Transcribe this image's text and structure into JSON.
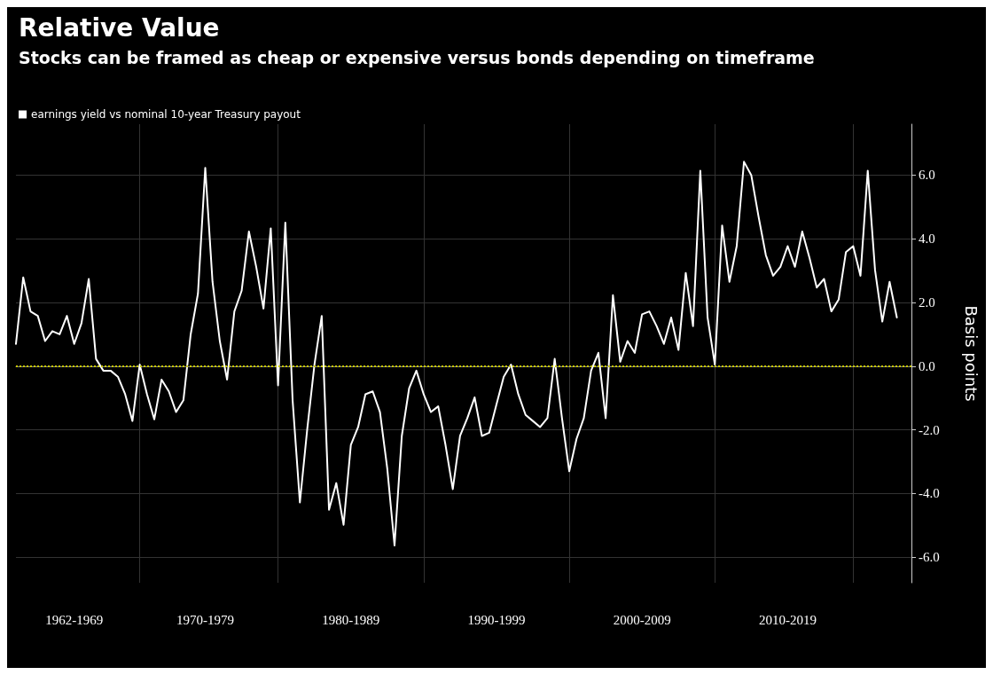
{
  "chart_data": {
    "type": "line",
    "title": "Relative Value",
    "subtitle": "Stocks can be framed as cheap or expensive versus bonds depending on timeframe",
    "ylabel": "Basis points",
    "categories": [
      null,
      null,
      null,
      null,
      null,
      null,
      null,
      null,
      "1962-1969",
      null,
      null,
      null,
      null,
      null,
      null,
      null,
      null,
      null,
      null,
      null,
      null,
      null,
      null,
      null,
      null,
      null,
      "1970-1979",
      null,
      null,
      null,
      null,
      null,
      null,
      null,
      null,
      null,
      null,
      null,
      null,
      null,
      null,
      null,
      null,
      null,
      null,
      null,
      "1980-1989",
      null,
      null,
      null,
      null,
      null,
      null,
      null,
      null,
      null,
      null,
      null,
      null,
      null,
      null,
      null,
      null,
      null,
      null,
      null,
      "1990-1999",
      null,
      null,
      null,
      null,
      null,
      null,
      null,
      null,
      null,
      null,
      null,
      null,
      null,
      null,
      null,
      null,
      null,
      null,
      null,
      "2000-2009",
      null,
      null,
      null,
      null,
      null,
      null,
      null,
      null,
      null,
      null,
      null,
      null,
      null,
      null,
      null,
      null,
      null,
      null,
      null,
      "2010-2019",
      null,
      null,
      null,
      null,
      null,
      null,
      null,
      null,
      null,
      null,
      null,
      null,
      null,
      null,
      null,
      null,
      null
    ],
    "series": [
      {
        "name": "earnings yield vs nominal 10-year Treasury payout",
        "color": "#ffffff",
        "values": [
          0.7,
          2.79,
          1.72,
          1.58,
          0.79,
          1.1,
          1.0,
          1.58,
          0.7,
          1.35,
          2.74,
          0.23,
          -0.14,
          -0.14,
          -0.33,
          -0.88,
          -1.72,
          0.05,
          -0.88,
          -1.67,
          -0.42,
          -0.79,
          -1.44,
          -1.07,
          1.0,
          2.28,
          6.23,
          2.65,
          0.79,
          -0.42,
          1.72,
          2.37,
          4.23,
          3.12,
          1.81,
          4.33,
          -0.6,
          4.51,
          -1.07,
          -4.28,
          -2.0,
          0.05,
          1.58,
          -4.51,
          -3.67,
          -4.98,
          -2.47,
          -1.91,
          -0.88,
          -0.79,
          -1.44,
          -3.21,
          -5.63,
          -2.19,
          -0.7,
          -0.14,
          -0.88,
          -1.44,
          -1.26,
          -2.47,
          -3.86,
          -2.19,
          -1.63,
          -0.98,
          -2.19,
          -2.09,
          -1.2,
          -0.33,
          0.05,
          -0.88,
          -1.53,
          -1.72,
          -1.91,
          -1.63,
          0.23,
          -1.63,
          -3.3,
          -2.28,
          -1.63,
          -0.14,
          0.42,
          -1.63,
          2.23,
          0.14,
          0.79,
          0.42,
          1.63,
          1.72,
          1.26,
          0.7,
          1.53,
          0.51,
          2.93,
          1.26,
          6.14,
          1.53,
          0.05,
          4.42,
          2.65,
          3.77,
          6.42,
          6.0,
          4.7,
          3.49,
          2.84,
          3.12,
          3.77,
          3.12,
          4.23,
          3.4,
          2.47,
          2.74,
          1.72,
          2.09,
          3.58,
          3.77,
          2.84,
          6.14,
          3.02,
          1.4,
          2.65,
          1.53,
          null,
          null
        ]
      }
    ],
    "ylim": [
      -6.8,
      7.6
    ],
    "yticks": [
      {
        "value": -6,
        "label": "-6.0"
      },
      {
        "value": -4,
        "label": "-4.0"
      },
      {
        "value": -2,
        "label": "-2.0"
      },
      {
        "value": 0,
        "label": "0.0"
      },
      {
        "value": 2,
        "label": "2.0"
      },
      {
        "value": 4,
        "label": "4.0"
      },
      {
        "value": 6,
        "label": "6.0"
      }
    ],
    "ref_lines": [
      {
        "axis": "y",
        "value": 0,
        "color": "#c8c800",
        "line_style": "dotted"
      }
    ],
    "grid": true,
    "legend": "top left",
    "marker": "none",
    "line_style": "solid"
  }
}
